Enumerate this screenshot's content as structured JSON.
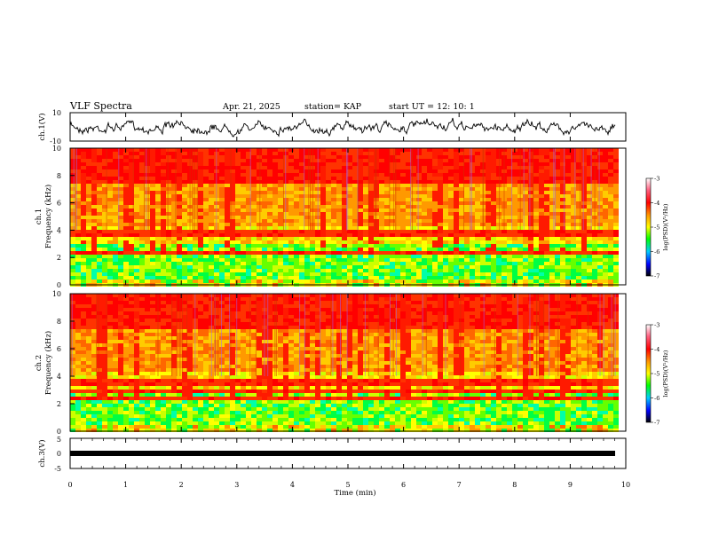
{
  "header": {
    "title": "VLF Spectra",
    "date": "Apr. 21, 2025",
    "station": "station= KAP",
    "start": "start  UT  =   12: 10: 1"
  },
  "chart_data": [
    {
      "type": "line",
      "panel": "ch1-waveform",
      "ylabel": "ch.1(V)",
      "ylim": [
        -10,
        10
      ],
      "yticks": [
        "10",
        "-10"
      ],
      "xlim": [
        0,
        10
      ]
    },
    {
      "type": "heatmap",
      "panel": "ch1-spectrogram",
      "ylabel": "ch.1\nFrequency (kHz)",
      "ylim": [
        0,
        10
      ],
      "yticks": [
        "0",
        "2",
        "4",
        "6",
        "8",
        "10"
      ],
      "xlim": [
        0,
        10
      ],
      "colorbar": {
        "label": "log(PSD)(V²/Hz)",
        "range": [
          -7,
          -3
        ],
        "ticks": [
          "-3",
          "-4",
          "-5",
          "-6",
          "-7"
        ]
      }
    },
    {
      "type": "heatmap",
      "panel": "ch2-spectrogram",
      "ylabel": "ch.2\nFrequency (kHz)",
      "ylim": [
        0,
        10
      ],
      "yticks": [
        "0",
        "2",
        "4",
        "6",
        "8",
        "10"
      ],
      "xlim": [
        0,
        10
      ],
      "colorbar": {
        "label": "log(PSD)(V²/Hz)",
        "range": [
          -7,
          -3
        ],
        "ticks": [
          "-3",
          "-4",
          "-5",
          "-6",
          "-7"
        ]
      }
    },
    {
      "type": "line",
      "panel": "ch3-waveform",
      "ylabel": "ch.3(V)",
      "ylim": [
        -5,
        5
      ],
      "yticks": [
        "5",
        "0",
        "-5"
      ],
      "xlim": [
        0,
        10
      ],
      "xlabel": "Time (min)",
      "xticks": [
        "0",
        "1",
        "2",
        "3",
        "4",
        "5",
        "6",
        "7",
        "8",
        "9",
        "10"
      ]
    }
  ],
  "labels": {
    "ch1_v": "ch.1(V)",
    "ch1_a": "ch.1",
    "ch1_b": "Frequency (kHz)",
    "ch2_a": "ch.2",
    "ch2_b": "Frequency (kHz)",
    "ch3_v": "ch.3(V)",
    "cb_label": "log(PSD)(V²/Hz)",
    "xlabel": "Time (min)"
  }
}
